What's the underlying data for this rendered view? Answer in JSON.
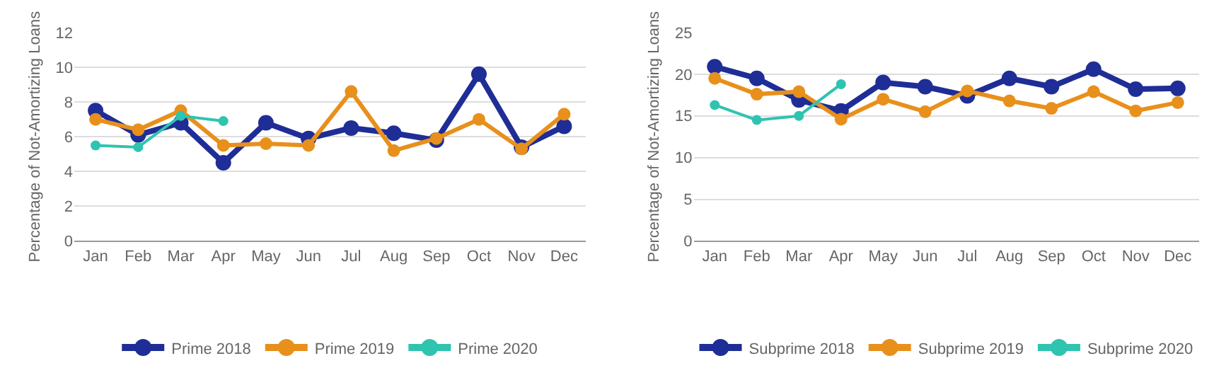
{
  "chart_data": [
    {
      "type": "line",
      "ylabel": "Percentage of Not-Amortizing Loans",
      "categories": [
        "Jan",
        "Feb",
        "Mar",
        "Apr",
        "May",
        "Jun",
        "Jul",
        "Aug",
        "Sep",
        "Oct",
        "Nov",
        "Dec"
      ],
      "ylim": [
        0,
        12
      ],
      "yticks": [
        0,
        2,
        4,
        6,
        8,
        10,
        12
      ],
      "grid": "y",
      "legend": "bottom",
      "marker": "circle",
      "line_style": "solid",
      "series": [
        {
          "name": "Prime 2018",
          "color": "#1f2d96",
          "values": [
            7.5,
            6.1,
            6.8,
            4.5,
            6.8,
            5.9,
            6.5,
            6.2,
            5.8,
            9.6,
            5.4,
            6.6
          ]
        },
        {
          "name": "Prime 2019",
          "color": "#e8901c",
          "values": [
            7.0,
            6.4,
            7.5,
            5.5,
            5.6,
            5.5,
            8.6,
            5.2,
            5.9,
            7.0,
            5.3,
            7.3
          ]
        },
        {
          "name": "Prime 2020",
          "color": "#2ec4b0",
          "values": [
            5.5,
            5.4,
            7.2,
            6.9,
            null,
            null,
            null,
            null,
            null,
            null,
            null,
            null
          ]
        }
      ]
    },
    {
      "type": "line",
      "ylabel": "Percentage of Not-Amortizing Loans",
      "categories": [
        "Jan",
        "Feb",
        "Mar",
        "Apr",
        "May",
        "Jun",
        "Jul",
        "Aug",
        "Sep",
        "Oct",
        "Nov",
        "Dec"
      ],
      "ylim": [
        0,
        25
      ],
      "yticks": [
        0,
        5,
        10,
        15,
        20,
        25
      ],
      "grid": "y",
      "legend": "bottom",
      "marker": "circle",
      "line_style": "solid",
      "series": [
        {
          "name": "Subprime 2018",
          "color": "#1f2d96",
          "values": [
            20.9,
            19.5,
            16.9,
            15.6,
            19.0,
            18.5,
            17.4,
            19.5,
            18.5,
            20.6,
            18.2,
            18.3
          ]
        },
        {
          "name": "Subprime 2019",
          "color": "#e8901c",
          "values": [
            19.5,
            17.6,
            17.9,
            14.6,
            17.0,
            15.5,
            18.0,
            16.8,
            15.9,
            17.9,
            15.6,
            16.6
          ]
        },
        {
          "name": "Subprime 2020",
          "color": "#2ec4b0",
          "values": [
            16.3,
            14.5,
            15.0,
            18.8,
            null,
            null,
            null,
            null,
            null,
            null,
            null,
            null
          ]
        }
      ]
    }
  ]
}
